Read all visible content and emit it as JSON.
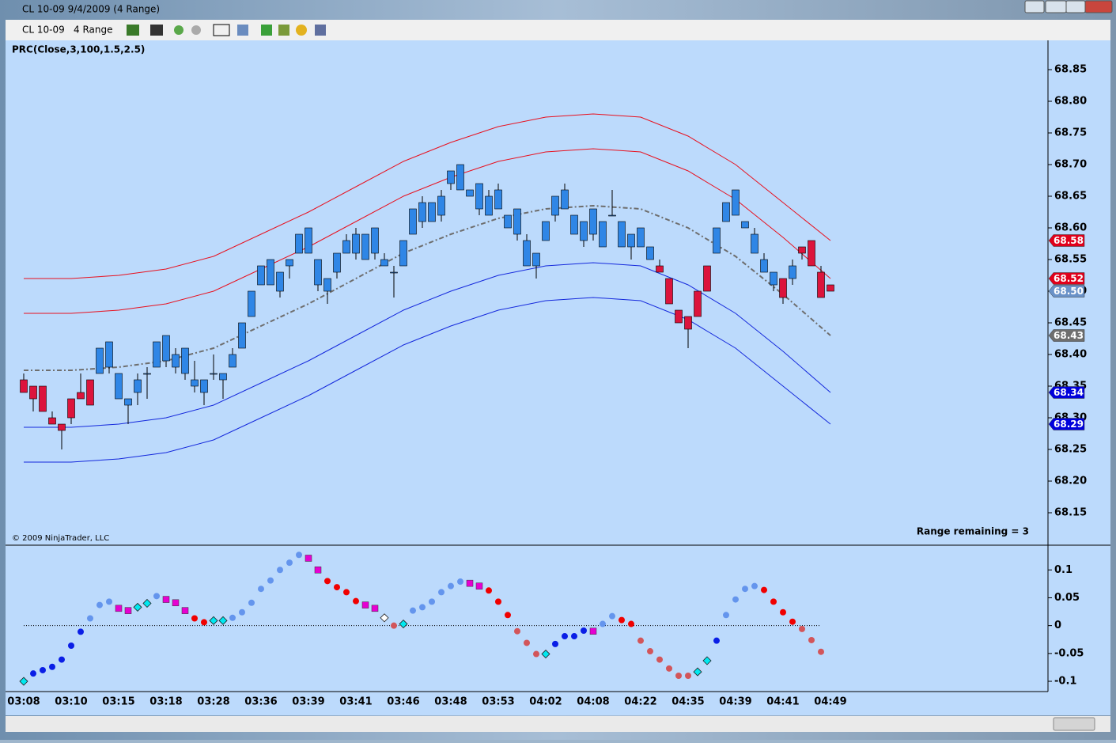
{
  "window": {
    "title": "CL 10-09  9/4/2009 (4 Range)",
    "symbol": "CL 10-09",
    "period": "4 Range"
  },
  "chart_data": [
    {
      "type": "candlestick",
      "title": "PRC(Close,3,100,1.5,2.5)",
      "annotations": [
        "© 2009 NinjaTrader, LLC",
        "Range remaining = 3"
      ],
      "categories": [
        "03:08",
        null,
        null,
        null,
        null,
        "03:10",
        null,
        null,
        null,
        null,
        "03:15",
        null,
        null,
        null,
        null,
        "03:18",
        null,
        null,
        null,
        null,
        "03:28",
        null,
        null,
        null,
        null,
        "03:36",
        null,
        null,
        null,
        null,
        "03:39",
        null,
        null,
        null,
        null,
        "03:41",
        null,
        null,
        null,
        null,
        "03:46",
        null,
        null,
        null,
        null,
        "03:48",
        null,
        null,
        null,
        null,
        "03:53",
        null,
        null,
        null,
        null,
        "04:02",
        null,
        null,
        null,
        null,
        "04:08",
        null,
        null,
        null,
        null,
        "04:22",
        null,
        null,
        null,
        null,
        "04:35",
        null,
        null,
        null,
        null,
        "04:39",
        null,
        null,
        null,
        null,
        "04:41",
        null,
        null,
        null,
        null,
        "04:49"
      ],
      "open": [
        68.36,
        68.35,
        68.35,
        68.3,
        68.29,
        68.33,
        68.34,
        68.36,
        68.37,
        68.38,
        68.33,
        68.32,
        68.34,
        68.37,
        68.38,
        68.39,
        68.38,
        68.37,
        68.35,
        68.34,
        68.37,
        68.36,
        68.38,
        68.41,
        68.46,
        68.51,
        68.51,
        68.5,
        68.54,
        68.56,
        68.56,
        68.51,
        68.5,
        68.53,
        68.56,
        68.56,
        68.55,
        68.56,
        68.54,
        68.53,
        68.54,
        68.59,
        68.61,
        68.61,
        68.62,
        68.67,
        68.66,
        68.65,
        68.63,
        68.62,
        68.63,
        68.6,
        68.59,
        68.54,
        68.54,
        68.58,
        68.62,
        68.63,
        68.59,
        68.58,
        68.59,
        68.57,
        68.62,
        68.57,
        68.57,
        68.57,
        68.55,
        68.54,
        68.52,
        68.47,
        68.46,
        68.5,
        68.54,
        68.56,
        68.61,
        68.62,
        68.6,
        68.56,
        68.53,
        68.51,
        68.52,
        68.52,
        68.57,
        68.58,
        68.53,
        68.51
      ],
      "high": [
        68.37,
        68.35,
        68.35,
        68.31,
        68.29,
        68.33,
        68.37,
        68.36,
        68.41,
        68.42,
        68.37,
        68.33,
        68.37,
        68.38,
        68.42,
        68.43,
        68.41,
        68.41,
        68.39,
        68.36,
        68.4,
        68.37,
        68.41,
        68.45,
        68.5,
        68.54,
        68.55,
        68.53,
        68.55,
        68.59,
        68.6,
        68.55,
        68.52,
        68.56,
        68.59,
        68.6,
        68.59,
        68.6,
        68.56,
        68.54,
        68.58,
        68.63,
        68.65,
        68.64,
        68.66,
        68.69,
        68.7,
        68.66,
        68.67,
        68.66,
        68.67,
        68.62,
        68.63,
        68.59,
        68.56,
        68.61,
        68.65,
        68.67,
        68.62,
        68.61,
        68.63,
        68.61,
        68.66,
        68.61,
        68.59,
        68.6,
        68.57,
        68.55,
        68.52,
        68.47,
        68.46,
        68.5,
        68.54,
        68.6,
        68.64,
        68.66,
        68.61,
        68.6,
        68.56,
        68.53,
        68.52,
        68.55,
        68.57,
        68.58,
        68.54,
        68.51
      ],
      "low": [
        68.34,
        68.31,
        68.31,
        68.29,
        68.25,
        68.29,
        68.33,
        68.32,
        68.37,
        68.37,
        68.33,
        68.29,
        68.32,
        68.33,
        68.38,
        68.38,
        68.37,
        68.36,
        68.34,
        68.32,
        68.36,
        68.33,
        68.38,
        68.41,
        68.46,
        68.51,
        68.51,
        68.49,
        68.52,
        68.56,
        68.56,
        68.5,
        68.48,
        68.52,
        68.56,
        68.55,
        68.55,
        68.55,
        68.54,
        68.49,
        68.54,
        68.59,
        68.6,
        68.61,
        68.61,
        68.66,
        68.66,
        68.65,
        68.62,
        68.62,
        68.63,
        68.6,
        68.58,
        68.54,
        68.52,
        68.58,
        68.61,
        68.63,
        68.59,
        68.57,
        68.58,
        68.57,
        68.62,
        68.57,
        68.55,
        68.57,
        68.55,
        68.53,
        68.48,
        68.45,
        68.41,
        68.46,
        68.5,
        68.56,
        68.61,
        68.62,
        68.6,
        68.56,
        68.53,
        68.5,
        68.48,
        68.51,
        68.55,
        68.54,
        68.49,
        68.5
      ],
      "close": [
        68.34,
        68.33,
        68.31,
        68.29,
        68.28,
        68.3,
        68.33,
        68.32,
        68.41,
        68.42,
        68.37,
        68.33,
        68.36,
        68.37,
        68.42,
        68.43,
        68.4,
        68.41,
        68.36,
        68.36,
        68.37,
        68.37,
        68.4,
        68.45,
        68.5,
        68.54,
        68.55,
        68.53,
        68.55,
        68.59,
        68.6,
        68.55,
        68.52,
        68.56,
        68.58,
        68.59,
        68.59,
        68.6,
        68.55,
        68.53,
        68.58,
        68.63,
        68.64,
        68.64,
        68.65,
        68.69,
        68.7,
        68.66,
        68.67,
        68.65,
        68.66,
        68.62,
        68.63,
        68.58,
        68.56,
        68.61,
        68.65,
        68.66,
        68.62,
        68.61,
        68.63,
        68.61,
        68.62,
        68.61,
        68.59,
        68.6,
        68.57,
        68.53,
        68.48,
        68.45,
        68.44,
        68.46,
        68.5,
        68.6,
        68.64,
        68.66,
        68.61,
        68.59,
        68.55,
        68.53,
        68.49,
        68.54,
        68.56,
        68.54,
        68.49,
        68.5
      ],
      "up_color": "#2f86e6",
      "down_color": "#dc143c",
      "bands": [
        {
          "color": "#e8101e",
          "x": [
            0,
            5,
            10,
            15,
            20,
            25,
            30,
            35,
            40,
            45,
            50,
            55,
            60,
            65,
            70,
            75,
            80,
            85
          ],
          "values": [
            68.52,
            68.52,
            68.525,
            68.535,
            68.555,
            68.59,
            68.625,
            68.665,
            68.705,
            68.735,
            68.76,
            68.775,
            68.78,
            68.775,
            68.745,
            68.7,
            68.64,
            68.58
          ]
        },
        {
          "color": "#e8101e",
          "x": [
            0,
            5,
            10,
            15,
            20,
            25,
            30,
            35,
            40,
            45,
            50,
            55,
            60,
            65,
            70,
            75,
            80,
            85
          ],
          "values": [
            68.465,
            68.465,
            68.47,
            68.48,
            68.5,
            68.535,
            68.57,
            68.61,
            68.65,
            68.68,
            68.705,
            68.72,
            68.725,
            68.72,
            68.69,
            68.645,
            68.585,
            68.52
          ]
        },
        {
          "color": "#6e6e6e",
          "dashed": true,
          "x": [
            0,
            5,
            10,
            15,
            20,
            25,
            30,
            35,
            40,
            45,
            50,
            55,
            60,
            65,
            70,
            75,
            80,
            85
          ],
          "values": [
            68.375,
            68.375,
            68.38,
            68.39,
            68.41,
            68.445,
            68.48,
            68.52,
            68.56,
            68.59,
            68.615,
            68.63,
            68.635,
            68.63,
            68.6,
            68.555,
            68.495,
            68.43
          ]
        },
        {
          "color": "#1428dc",
          "x": [
            0,
            5,
            10,
            15,
            20,
            25,
            30,
            35,
            40,
            45,
            50,
            55,
            60,
            65,
            70,
            75,
            80,
            85
          ],
          "values": [
            68.285,
            68.285,
            68.29,
            68.3,
            68.32,
            68.355,
            68.39,
            68.43,
            68.47,
            68.5,
            68.525,
            68.54,
            68.545,
            68.54,
            68.51,
            68.465,
            68.405,
            68.34
          ]
        },
        {
          "color": "#1428dc",
          "x": [
            0,
            5,
            10,
            15,
            20,
            25,
            30,
            35,
            40,
            45,
            50,
            55,
            60,
            65,
            70,
            75,
            80,
            85
          ],
          "values": [
            68.23,
            68.23,
            68.235,
            68.245,
            68.265,
            68.3,
            68.335,
            68.375,
            68.415,
            68.445,
            68.47,
            68.485,
            68.49,
            68.485,
            68.455,
            68.41,
            68.35,
            68.29
          ]
        }
      ],
      "price_markers": [
        {
          "value": 68.58,
          "color": "#e0001b"
        },
        {
          "value": 68.52,
          "color": "#e0001b"
        },
        {
          "value": 68.5,
          "label": "68.50",
          "color": "#6a92c8"
        },
        {
          "value": 68.43,
          "color": "#6e6e6e"
        },
        {
          "value": 68.34,
          "color": "#0000dc"
        },
        {
          "value": 68.29,
          "color": "#0000dc"
        }
      ],
      "ylim": [
        68.1,
        68.895
      ],
      "yticks": [
        68.15,
        {
          "value": 68.2,
          "label": "68.20"
        },
        68.25,
        {
          "value": 68.3,
          "label": "68.30"
        },
        68.35,
        {
          "value": 68.4,
          "label": "68.40"
        },
        68.45,
        {
          "value": 68.5,
          "label": "68.50"
        },
        68.55,
        {
          "value": 68.6,
          "label": "68.60"
        },
        68.65,
        {
          "value": 68.7,
          "label": "68.70"
        },
        68.75,
        {
          "value": 68.8,
          "label": "68.80"
        },
        68.85
      ]
    },
    {
      "type": "dots",
      "values": [
        -0.1,
        -0.086,
        -0.08,
        -0.074,
        -0.061,
        -0.036,
        -0.011,
        0.013,
        0.037,
        0.043,
        0.031,
        0.027,
        0.033,
        0.04,
        0.053,
        0.047,
        0.041,
        0.027,
        0.013,
        0.006,
        0.009,
        0.009,
        0.014,
        0.024,
        0.041,
        0.066,
        0.081,
        0.1,
        0.113,
        0.127,
        0.121,
        0.1,
        0.08,
        0.069,
        0.06,
        0.044,
        0.037,
        0.031,
        0.014,
        0,
        0.003,
        0.027,
        0.033,
        0.043,
        0.06,
        0.071,
        0.079,
        0.076,
        0.071,
        0.063,
        0.043,
        0.019,
        -0.01,
        -0.031,
        -0.051,
        -0.051,
        -0.033,
        -0.019,
        -0.019,
        -0.009,
        -0.01,
        0.003,
        0.017,
        0.01,
        0.003,
        -0.027,
        -0.046,
        -0.061,
        -0.077,
        -0.09,
        -0.09,
        -0.083,
        -0.063,
        -0.027,
        0.019,
        0.047,
        0.066,
        0.071,
        0.064,
        0.043,
        0.024,
        0.007,
        -0.006,
        -0.026,
        -0.047,
        null
      ],
      "colors": [
        "#00e8f0",
        "#0a1ee6",
        "#0a1ee6",
        "#0a1ee6",
        "#0a1ee6",
        "#0a1ee6",
        "#0a1ee6",
        "#6495ed",
        "#6495ed",
        "#6495ed",
        "#e600d2",
        "#e600d2",
        "#00e8f0",
        "#00e8f0",
        "#6495ed",
        "#e600d2",
        "#e600d2",
        "#e600d2",
        "#f00000",
        "#f00000",
        "#00e8f0",
        "#00e8f0",
        "#6495ed",
        "#6495ed",
        "#6495ed",
        "#6495ed",
        "#6495ed",
        "#6495ed",
        "#6495ed",
        "#6495ed",
        "#e600d2",
        "#e600d2",
        "#f00000",
        "#f00000",
        "#f00000",
        "#f00000",
        "#e600d2",
        "#e600d2",
        "#ffffff",
        "#d2555a",
        "#00e8f0",
        "#6495ed",
        "#6495ed",
        "#6495ed",
        "#6495ed",
        "#6495ed",
        "#6495ed",
        "#e600d2",
        "#e600d2",
        "#f00000",
        "#f00000",
        "#f00000",
        "#d2555a",
        "#d2555a",
        "#d2555a",
        "#00e8f0",
        "#0a1ee6",
        "#0a1ee6",
        "#0a1ee6",
        "#0a1ee6",
        "#e600d2",
        "#6495ed",
        "#6495ed",
        "#f00000",
        "#f00000",
        "#d2555a",
        "#d2555a",
        "#d2555a",
        "#d2555a",
        "#d2555a",
        "#d2555a",
        "#00e8f0",
        "#00e8f0",
        "#0a1ee6",
        "#6495ed",
        "#6495ed",
        "#6495ed",
        "#6495ed",
        "#f00000",
        "#f00000",
        "#f00000",
        "#f00000",
        "#d2555a",
        "#d2555a",
        "#d2555a",
        null
      ],
      "shapes": [
        "diamond",
        "circle",
        "circle",
        "circle",
        "circle",
        "circle",
        "circle",
        "circle",
        "circle",
        "circle",
        "square",
        "square",
        "diamond",
        "diamond",
        "circle",
        "square",
        "square",
        "square",
        "circle",
        "circle",
        "diamond",
        "diamond",
        "circle",
        "circle",
        "circle",
        "circle",
        "circle",
        "circle",
        "circle",
        "circle",
        "square",
        "square",
        "circle",
        "circle",
        "circle",
        "circle",
        "square",
        "square",
        "diamond",
        "circle",
        "diamond",
        "circle",
        "circle",
        "circle",
        "circle",
        "circle",
        "circle",
        "square",
        "square",
        "circle",
        "circle",
        "circle",
        "circle",
        "circle",
        "circle",
        "diamond",
        "circle",
        "circle",
        "circle",
        "circle",
        "square",
        "circle",
        "circle",
        "circle",
        "circle",
        "circle",
        "circle",
        "circle",
        "circle",
        "circle",
        "circle",
        "diamond",
        "diamond",
        "circle",
        "circle",
        "circle",
        "circle",
        "circle",
        "circle",
        "circle",
        "circle",
        "circle",
        "circle",
        "circle",
        "circle",
        null
      ],
      "ylim": [
        -0.117,
        0.143
      ],
      "yticks": [
        0.1,
        0.05,
        0,
        -0.05,
        -0.1
      ]
    }
  ]
}
